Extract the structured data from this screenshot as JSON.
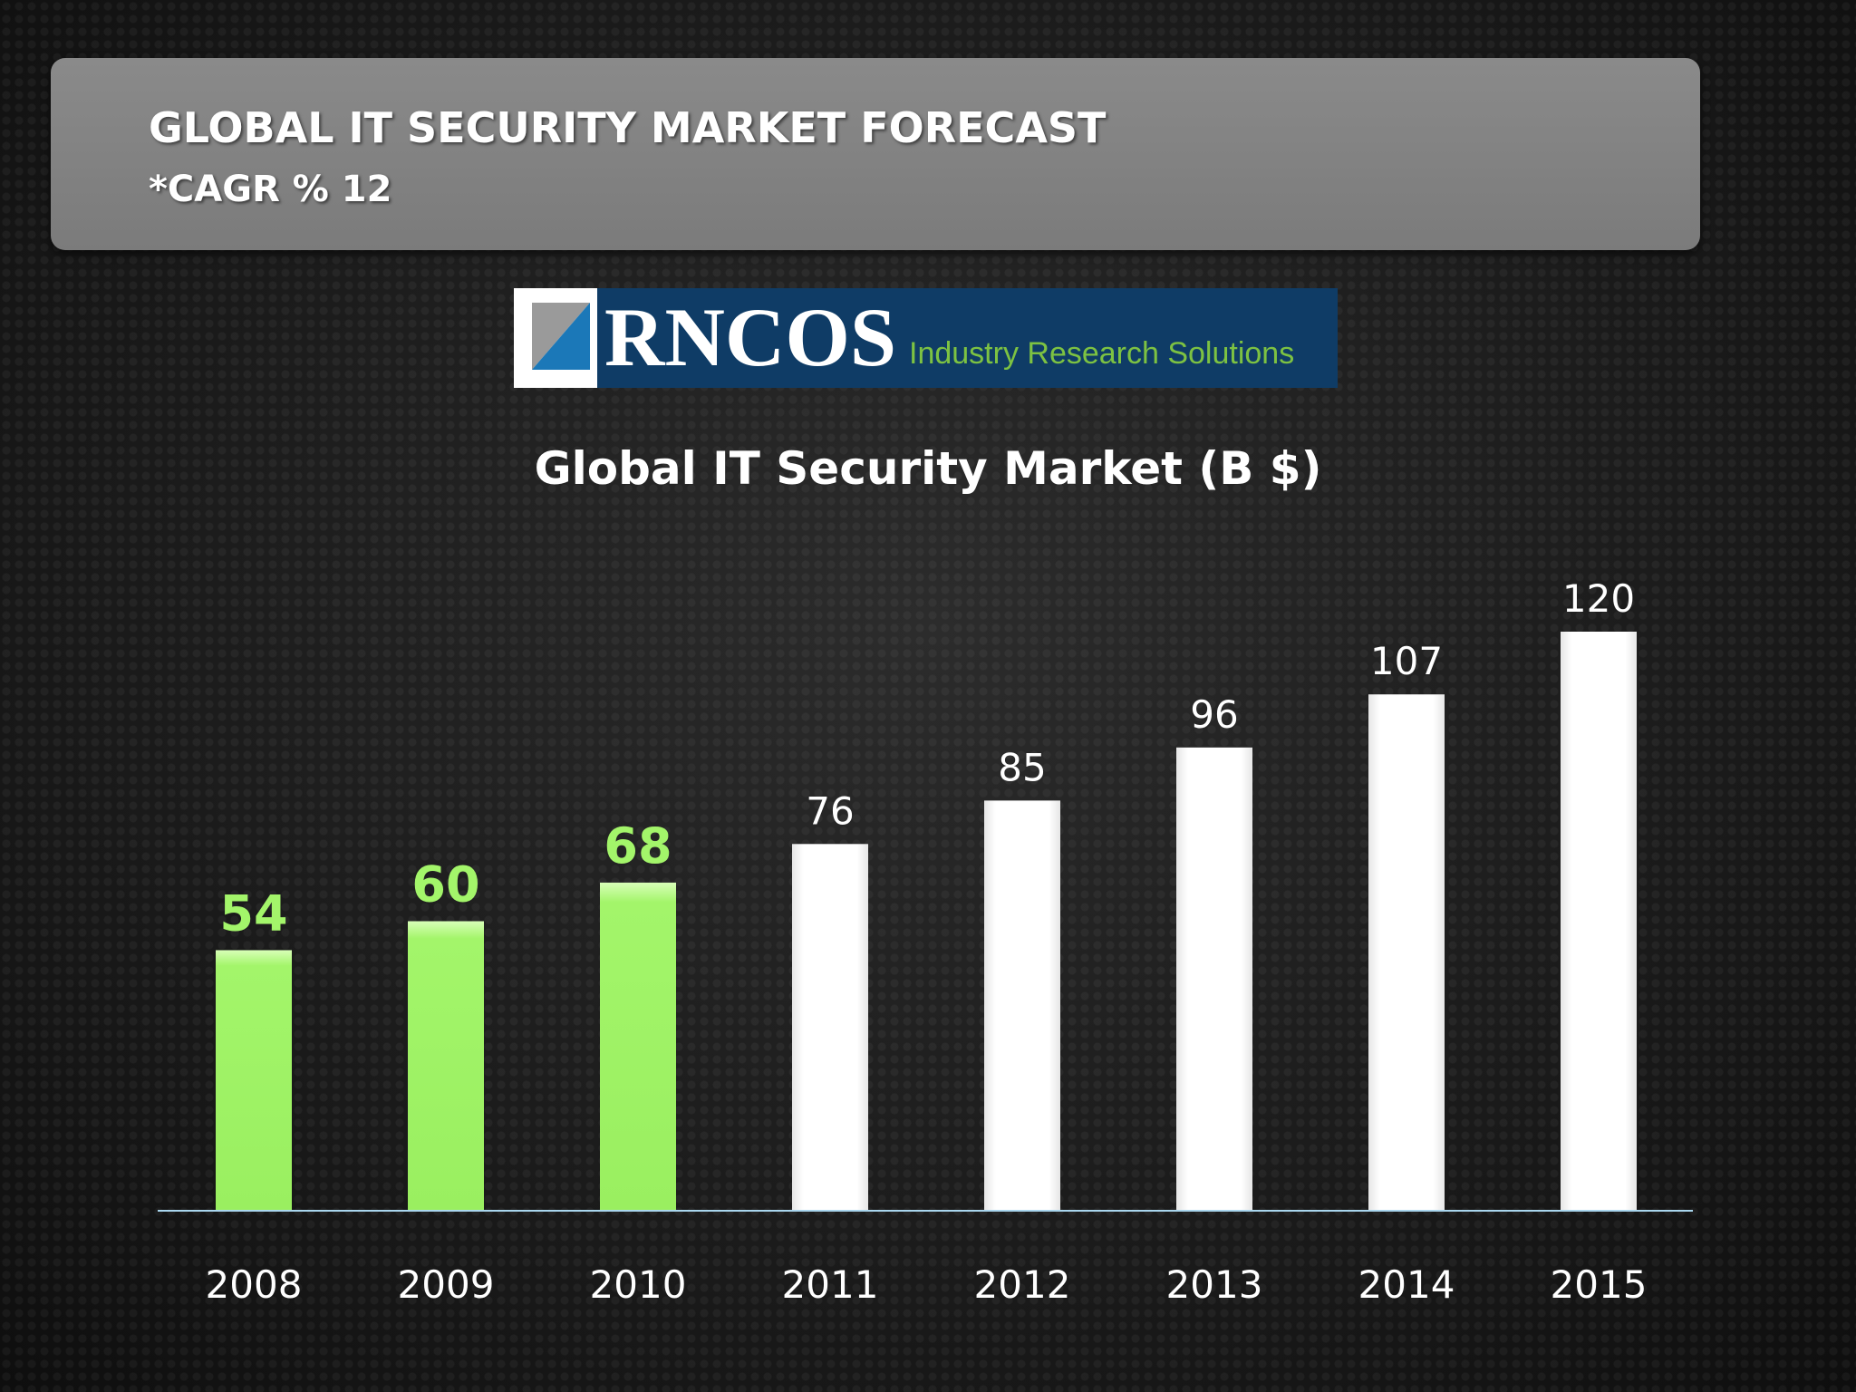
{
  "slide": {
    "title": "GLOBAL IT SECURITY MARKET FORECAST",
    "subtitle": "*CAGR % 12"
  },
  "logo": {
    "name": "RNCOS",
    "tagline": "Industry Research Solutions"
  },
  "colors": {
    "actual_bar": "#a3f56a",
    "actual_label": "#a3f56a",
    "forecast_bar": "#ffffff",
    "forecast_label": "#ffffff",
    "axis_line": "#a9d6ee"
  },
  "chart_data": {
    "type": "bar",
    "title": "Global IT Security Market (B $)",
    "categories": [
      "2008",
      "2009",
      "2010",
      "2011",
      "2012",
      "2013",
      "2014",
      "2015"
    ],
    "values": [
      54,
      60,
      68,
      76,
      85,
      96,
      107,
      120
    ],
    "data_labels": [
      "54",
      "60",
      "68",
      "76",
      "85",
      "96",
      "107",
      "120"
    ],
    "highlighted": [
      true,
      true,
      true,
      false,
      false,
      false,
      false,
      false
    ],
    "xlabel": "",
    "ylabel": "",
    "ylim": [
      0,
      120
    ],
    "grid": false,
    "legend": "none"
  }
}
